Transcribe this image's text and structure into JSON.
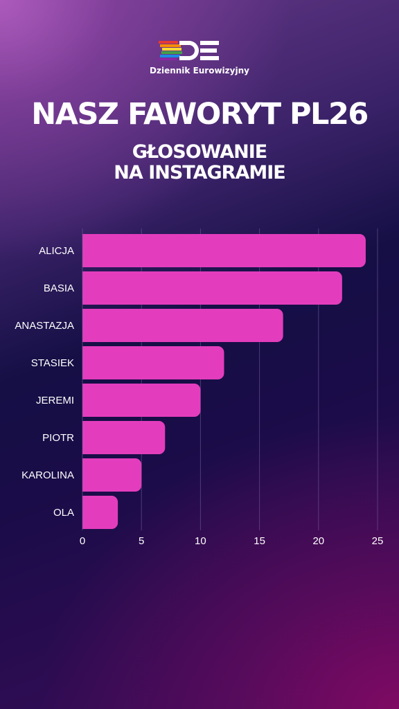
{
  "header": {
    "logo_text": "Dziennik Eurowizyjny",
    "title": "NASZ FAWORYT PL26",
    "subtitle_line1": "GŁOSOWANIE",
    "subtitle_line2": "NA INSTAGRAMIE"
  },
  "colors": {
    "bar": "#e33dbd",
    "grid": "#6f5a9a",
    "text": "#ffffff"
  },
  "chart_data": {
    "type": "bar",
    "orientation": "horizontal",
    "categories": [
      "ALICJA",
      "BASIA",
      "ANASTAZJA",
      "STASIEK",
      "JEREMI",
      "PIOTR",
      "KAROLINA",
      "OLA"
    ],
    "values": [
      24,
      22,
      17,
      12,
      10,
      7,
      5,
      3
    ],
    "xlim": [
      0,
      25
    ],
    "xticks": [
      0,
      5,
      10,
      15,
      20,
      25
    ],
    "grid": true
  }
}
